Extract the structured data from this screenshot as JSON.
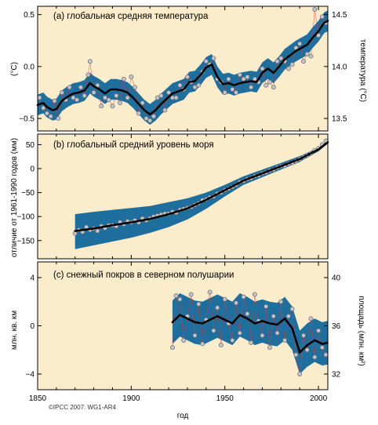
{
  "chart_data": [
    {
      "type": "line",
      "title": "(a) глобальная средняя температура",
      "ylabel": "(°C)",
      "ylabel_right": "температура (°C)",
      "xlim": [
        1850,
        2005
      ],
      "ylim": [
        -0.62,
        0.58
      ],
      "yticks": [
        -0.5,
        0.0,
        0.5
      ],
      "ytick_labels": [
        "−0.5",
        "0.0",
        "0.5"
      ],
      "right_ylim": [
        13.38,
        14.58
      ],
      "right_yticks": [
        13.5,
        14.0,
        14.5
      ],
      "right_ytick_labels": [
        "13.5",
        "14.0",
        "14.5"
      ],
      "smooth_x": [
        1850,
        1853,
        1855,
        1858,
        1860,
        1863,
        1866,
        1869,
        1872,
        1875,
        1878,
        1880,
        1883,
        1886,
        1889,
        1892,
        1895,
        1898,
        1901,
        1904,
        1907,
        1910,
        1913,
        1916,
        1919,
        1922,
        1925,
        1928,
        1931,
        1934,
        1937,
        1940,
        1943,
        1946,
        1949,
        1952,
        1955,
        1958,
        1961,
        1964,
        1967,
        1970,
        1973,
        1976,
        1979,
        1982,
        1985,
        1988,
        1991,
        1994,
        1997,
        2000,
        2003,
        2005
      ],
      "smooth_y": [
        -0.37,
        -0.35,
        -0.39,
        -0.42,
        -0.41,
        -0.33,
        -0.29,
        -0.26,
        -0.25,
        -0.23,
        -0.16,
        -0.19,
        -0.22,
        -0.26,
        -0.22,
        -0.22,
        -0.23,
        -0.25,
        -0.3,
        -0.36,
        -0.42,
        -0.46,
        -0.42,
        -0.36,
        -0.31,
        -0.26,
        -0.24,
        -0.22,
        -0.15,
        -0.14,
        -0.08,
        -0.01,
        0.02,
        -0.1,
        -0.17,
        -0.16,
        -0.18,
        -0.16,
        -0.15,
        -0.14,
        -0.15,
        -0.06,
        -0.02,
        -0.06,
        0.0,
        0.07,
        0.11,
        0.15,
        0.18,
        0.21,
        0.28,
        0.34,
        0.42,
        0.44
      ],
      "band_half_width": 0.1,
      "annual_x": [
        1851,
        1853,
        1855,
        1857,
        1859,
        1861,
        1863,
        1865,
        1867,
        1869,
        1871,
        1873,
        1875,
        1877,
        1878,
        1880,
        1882,
        1884,
        1886,
        1888,
        1890,
        1892,
        1894,
        1896,
        1898,
        1900,
        1902,
        1904,
        1906,
        1908,
        1910,
        1912,
        1914,
        1916,
        1918,
        1920,
        1922,
        1924,
        1926,
        1928,
        1930,
        1932,
        1934,
        1936,
        1938,
        1940,
        1942,
        1944,
        1946,
        1948,
        1950,
        1952,
        1954,
        1956,
        1958,
        1960,
        1962,
        1964,
        1966,
        1968,
        1970,
        1972,
        1974,
        1976,
        1978,
        1980,
        1982,
        1984,
        1986,
        1988,
        1990,
        1992,
        1994,
        1996,
        1998,
        2000,
        2002,
        2004
      ],
      "annual_y": [
        -0.3,
        -0.4,
        -0.45,
        -0.48,
        -0.33,
        -0.5,
        -0.25,
        -0.32,
        -0.2,
        -0.3,
        -0.32,
        -0.2,
        -0.28,
        -0.08,
        0.05,
        -0.25,
        -0.18,
        -0.38,
        -0.3,
        -0.32,
        -0.38,
        -0.28,
        -0.35,
        -0.12,
        -0.3,
        -0.1,
        -0.2,
        -0.45,
        -0.35,
        -0.5,
        -0.52,
        -0.48,
        -0.3,
        -0.28,
        -0.42,
        -0.25,
        -0.3,
        -0.3,
        -0.18,
        -0.22,
        -0.1,
        -0.15,
        -0.2,
        -0.18,
        -0.05,
        0.05,
        0.02,
        0.08,
        -0.12,
        -0.15,
        -0.25,
        -0.12,
        -0.22,
        -0.25,
        -0.08,
        -0.12,
        -0.1,
        -0.2,
        -0.12,
        -0.15,
        -0.02,
        -0.18,
        -0.15,
        -0.2,
        0.05,
        0.08,
        0.05,
        -0.02,
        0.02,
        0.18,
        0.22,
        0.05,
        0.12,
        0.1,
        0.55,
        0.3,
        0.48,
        0.42
      ]
    },
    {
      "type": "line",
      "title": "(b) глобальный средний уровень моря",
      "ylabel": "отличие от 1961-1990 годов (мм)",
      "xlim": [
        1850,
        2005
      ],
      "ylim": [
        -188,
        72
      ],
      "yticks": [
        -150,
        -100,
        -50,
        0,
        50
      ],
      "ytick_labels": [
        "−150",
        "−100",
        "−50",
        "0",
        "50"
      ],
      "smooth_x": [
        1870,
        1880,
        1890,
        1900,
        1910,
        1920,
        1930,
        1940,
        1950,
        1960,
        1970,
        1980,
        1990,
        2000,
        2005
      ],
      "smooth_y": [
        -130,
        -125,
        -118,
        -112,
        -105,
        -95,
        -83,
        -65,
        -45,
        -25,
        -10,
        5,
        20,
        40,
        55
      ],
      "band_upper": [
        -95,
        -90,
        -86,
        -82,
        -78,
        -70,
        -62,
        -50,
        -34,
        -16,
        -2,
        12,
        26,
        44,
        58
      ],
      "band_lower": [
        -168,
        -160,
        -152,
        -144,
        -134,
        -122,
        -106,
        -84,
        -58,
        -34,
        -18,
        -2,
        14,
        36,
        52
      ],
      "annual_x": [
        1870,
        1872,
        1874,
        1876,
        1878,
        1880,
        1882,
        1884,
        1886,
        1888,
        1890,
        1892,
        1894,
        1896,
        1898,
        1900,
        1902,
        1904,
        1906,
        1908,
        1910,
        1912,
        1914,
        1916,
        1918,
        1920,
        1922,
        1924,
        1926,
        1928,
        1930,
        1932,
        1934,
        1936,
        1938,
        1940,
        1942,
        1944,
        1946,
        1948,
        1950,
        1952,
        1954,
        1956,
        1958,
        1960,
        1962,
        1964,
        1966,
        1968,
        1970,
        1972,
        1974,
        1976,
        1978,
        1980,
        1982,
        1984,
        1986,
        1988,
        1990,
        1992,
        1994,
        1996,
        1998,
        2000,
        2002,
        2004
      ],
      "annual_y": [
        -135,
        -128,
        -132,
        -122,
        -128,
        -125,
        -130,
        -120,
        -124,
        -118,
        -118,
        -120,
        -112,
        -116,
        -110,
        -112,
        -108,
        -112,
        -104,
        -108,
        -104,
        -100,
        -98,
        -96,
        -94,
        -94,
        -90,
        -92,
        -86,
        -84,
        -82,
        -80,
        -76,
        -72,
        -66,
        -64,
        -60,
        -58,
        -52,
        -50,
        -45,
        -42,
        -38,
        -34,
        -28,
        -26,
        -22,
        -20,
        -16,
        -14,
        -10,
        -8,
        -4,
        -2,
        2,
        5,
        6,
        10,
        12,
        16,
        20,
        24,
        28,
        32,
        38,
        42,
        50,
        58
      ]
    },
    {
      "type": "line",
      "title": "(c) снежный покров в северном полушарии",
      "ylabel": "млн. кв. км",
      "ylabel_right": "площадь (млн. км²)",
      "xlim": [
        1850,
        2005
      ],
      "ylim": [
        -5.3,
        5.3
      ],
      "yticks": [
        -4,
        0,
        4
      ],
      "ytick_labels": [
        "−4",
        "0",
        "4"
      ],
      "right_ylim": [
        30.7,
        41.3
      ],
      "right_yticks": [
        32,
        36,
        40
      ],
      "right_ytick_labels": [
        "32",
        "36",
        "40"
      ],
      "xticks": [
        1850,
        1900,
        1950,
        2000
      ],
      "xtick_labels": [
        "1850",
        "1900",
        "1950",
        "2000"
      ],
      "xlabel": "год",
      "smooth_x": [
        1922,
        1926,
        1930,
        1934,
        1938,
        1942,
        1946,
        1950,
        1954,
        1958,
        1962,
        1966,
        1970,
        1974,
        1978,
        1982,
        1986,
        1990,
        1994,
        1998,
        2002,
        2005
      ],
      "smooth_y": [
        0.3,
        0.9,
        0.6,
        0.3,
        0.2,
        0.5,
        0.8,
        0.5,
        0.2,
        0.9,
        0.6,
        0.2,
        0.4,
        0.2,
        0.1,
        0.6,
        -0.2,
        -2.2,
        -1.6,
        -1.2,
        -1.5,
        -1.4
      ],
      "band_half_width": 1.8,
      "annual_x": [
        1922,
        1924,
        1926,
        1928,
        1930,
        1932,
        1934,
        1936,
        1938,
        1940,
        1942,
        1944,
        1946,
        1948,
        1950,
        1952,
        1954,
        1956,
        1958,
        1960,
        1962,
        1964,
        1966,
        1968,
        1970,
        1972,
        1974,
        1976,
        1978,
        1980,
        1982,
        1984,
        1986,
        1988,
        1990,
        1992,
        1994,
        1996,
        1998,
        2000,
        2002,
        2004
      ],
      "annual_y": [
        -1.8,
        2.5,
        2.2,
        -1.2,
        0.8,
        2.6,
        -0.8,
        1.8,
        -1.5,
        0.5,
        2.8,
        -0.4,
        1.5,
        -1.6,
        2.2,
        0.2,
        -1.2,
        1.9,
        -0.6,
        2.4,
        1.0,
        -1.4,
        2.6,
        0.4,
        -0.8,
        1.6,
        -1.8,
        0.8,
        -0.6,
        2.0,
        -1.2,
        0.8,
        1.4,
        -2.4,
        -4.0,
        -0.8,
        -2.0,
        0.6,
        -2.6,
        -0.4,
        -1.8,
        -2.4
      ]
    }
  ],
  "copyright": "©IPCC  2007: WG1-AR4",
  "colors": {
    "panel_bg": "#fbeccb",
    "band": "#1f6f9e",
    "smooth": "#000000",
    "point_fill": "#c4c4cc",
    "point_stroke": "#6a6a70",
    "thin_line": "#d43a3a"
  }
}
